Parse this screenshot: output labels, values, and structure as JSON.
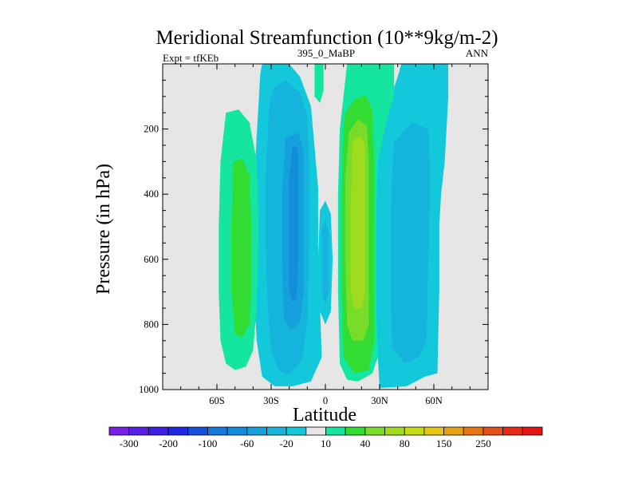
{
  "chart_data": {
    "type": "heatmap",
    "title": "Meridional Streamfunction (10**9kg/m-2)",
    "left_subtitle": "Expt = tfKEb",
    "center_subtitle": "395_0_MaBP",
    "right_subtitle": "ANN",
    "xlabel": "Latitude",
    "ylabel": "Pressure (in hPa)",
    "xlim": [
      -90,
      90
    ],
    "ylim": [
      1000,
      0
    ],
    "x_ticks": [
      {
        "value": -60,
        "label": "60S"
      },
      {
        "value": -30,
        "label": "30S"
      },
      {
        "value": 0,
        "label": "0"
      },
      {
        "value": 30,
        "label": "30N"
      },
      {
        "value": 60,
        "label": "60N"
      }
    ],
    "y_ticks": [
      {
        "value": 200,
        "label": "200"
      },
      {
        "value": 400,
        "label": "400"
      },
      {
        "value": 600,
        "label": "600"
      },
      {
        "value": 800,
        "label": "800"
      },
      {
        "value": 1000,
        "label": "1000"
      }
    ],
    "colorbar": {
      "colors": [
        "#7a1ee6",
        "#5a1ee6",
        "#3c1ee6",
        "#1e28e6",
        "#1450dc",
        "#1478dc",
        "#148cdc",
        "#14a0dc",
        "#14b4dc",
        "#14c8dc",
        "#e6e6e6",
        "#14e6a0",
        "#32dc32",
        "#78dc28",
        "#a0dc1e",
        "#c8dc14",
        "#e6c814",
        "#e6a014",
        "#e67814",
        "#e65014",
        "#e62814",
        "#e61414"
      ],
      "labels": [
        {
          "boundary": 1,
          "text": "-300"
        },
        {
          "boundary": 3,
          "text": "-200"
        },
        {
          "boundary": 5,
          "text": "-100"
        },
        {
          "boundary": 7,
          "text": "-60"
        },
        {
          "boundary": 9,
          "text": "-20"
        },
        {
          "boundary": 11,
          "text": "10"
        },
        {
          "boundary": 13,
          "text": "40"
        },
        {
          "boundary": 15,
          "text": "80"
        },
        {
          "boundary": 17,
          "text": "150"
        },
        {
          "boundary": 19,
          "text": "250"
        }
      ]
    },
    "background_color": "#e6e6e6",
    "regions": [
      {
        "level": "-20",
        "color": "#14c8dc",
        "polygon": [
          [
            -20,
            0
          ],
          [
            -35,
            0
          ],
          [
            -36,
            30
          ],
          [
            -38,
            220
          ],
          [
            -40,
            420
          ],
          [
            -40,
            640
          ],
          [
            -38,
            850
          ],
          [
            -35,
            960
          ],
          [
            -28,
            990
          ],
          [
            -18,
            990
          ],
          [
            -8,
            975
          ],
          [
            -2,
            900
          ],
          [
            -3,
            740
          ],
          [
            -4,
            560
          ],
          [
            -4,
            380
          ],
          [
            -8,
            130
          ],
          [
            -14,
            40
          ],
          [
            -20,
            0
          ]
        ]
      },
      {
        "level": "-20",
        "color": "#14c8dc",
        "polygon": [
          [
            42,
            0
          ],
          [
            68,
            0
          ],
          [
            68,
            100
          ],
          [
            67,
            200
          ],
          [
            66,
            300
          ],
          [
            64,
            400
          ],
          [
            63,
            500
          ],
          [
            63,
            700
          ],
          [
            62,
            950
          ],
          [
            55,
            960
          ],
          [
            45,
            990
          ],
          [
            30,
            995
          ],
          [
            27,
            700
          ],
          [
            28,
            300
          ],
          [
            35,
            120
          ],
          [
            40,
            40
          ],
          [
            42,
            0
          ]
        ]
      },
      {
        "level": "-20",
        "color": "#14c8dc",
        "polygon": [
          [
            -3,
            450
          ],
          [
            0,
            420
          ],
          [
            3,
            460
          ],
          [
            4,
            600
          ],
          [
            3,
            760
          ],
          [
            0,
            800
          ],
          [
            -3,
            760
          ],
          [
            -4,
            600
          ],
          [
            -3,
            450
          ]
        ]
      },
      {
        "level": "-60",
        "color": "#14b4dc",
        "polygon": [
          [
            -31,
            120
          ],
          [
            -28,
            70
          ],
          [
            -22,
            50
          ],
          [
            -14,
            90
          ],
          [
            -10,
            160
          ],
          [
            -9,
            300
          ],
          [
            -9,
            560
          ],
          [
            -10,
            800
          ],
          [
            -13,
            910
          ],
          [
            -20,
            955
          ],
          [
            -26,
            940
          ],
          [
            -30,
            880
          ],
          [
            -32,
            740
          ],
          [
            -33,
            550
          ],
          [
            -33,
            350
          ],
          [
            -31,
            120
          ]
        ]
      },
      {
        "level": "-60",
        "color": "#14b4dc",
        "polygon": [
          [
            38,
            240
          ],
          [
            48,
            180
          ],
          [
            57,
            200
          ],
          [
            58,
            360
          ],
          [
            57,
            600
          ],
          [
            56,
            850
          ],
          [
            52,
            900
          ],
          [
            44,
            920
          ],
          [
            37,
            870
          ],
          [
            36,
            700
          ],
          [
            36,
            500
          ],
          [
            37,
            330
          ],
          [
            38,
            240
          ]
        ]
      },
      {
        "level": "-60",
        "color": "#14b4dc",
        "polygon": [
          [
            -2,
            500
          ],
          [
            0,
            480
          ],
          [
            2,
            520
          ],
          [
            2,
            700
          ],
          [
            0,
            740
          ],
          [
            -2,
            700
          ],
          [
            -2,
            500
          ]
        ]
      },
      {
        "level": "-100",
        "color": "#14a0dc",
        "polygon": [
          [
            -22,
            230
          ],
          [
            -15,
            210
          ],
          [
            -12,
            270
          ],
          [
            -12,
            500
          ],
          [
            -12,
            700
          ],
          [
            -14,
            790
          ],
          [
            -19,
            820
          ],
          [
            -23,
            780
          ],
          [
            -24,
            600
          ],
          [
            -24,
            400
          ],
          [
            -22,
            230
          ]
        ]
      },
      {
        "level": "-200",
        "color": "#148cdc",
        "polygon": [
          [
            -18,
            250
          ],
          [
            -15,
            260
          ],
          [
            -15,
            400
          ],
          [
            -15,
            600
          ],
          [
            -16,
            720
          ],
          [
            -18,
            730
          ],
          [
            -20,
            700
          ],
          [
            -20,
            500
          ],
          [
            -20,
            350
          ],
          [
            -18,
            250
          ]
        ]
      },
      {
        "level": "10",
        "color": "#14e6a0",
        "polygon": [
          [
            -55,
            150
          ],
          [
            -48,
            140
          ],
          [
            -42,
            180
          ],
          [
            -38,
            300
          ],
          [
            -37,
            500
          ],
          [
            -38,
            750
          ],
          [
            -40,
            880
          ],
          [
            -44,
            930
          ],
          [
            -50,
            940
          ],
          [
            -55,
            920
          ],
          [
            -58,
            850
          ],
          [
            -59,
            700
          ],
          [
            -59,
            500
          ],
          [
            -58,
            300
          ],
          [
            -55,
            150
          ]
        ]
      },
      {
        "level": "10",
        "color": "#14e6a0",
        "polygon": [
          [
            12,
            0
          ],
          [
            38,
            0
          ],
          [
            38,
            100
          ],
          [
            35,
            150
          ],
          [
            32,
            220
          ],
          [
            29,
            300
          ],
          [
            28,
            500
          ],
          [
            28,
            700
          ],
          [
            29,
            900
          ],
          [
            26,
            950
          ],
          [
            18,
            975
          ],
          [
            12,
            970
          ],
          [
            8,
            920
          ],
          [
            7,
            700
          ],
          [
            7,
            400
          ],
          [
            8,
            200
          ],
          [
            10,
            100
          ],
          [
            12,
            0
          ]
        ]
      },
      {
        "level": "10",
        "color": "#14e6a0",
        "polygon": [
          [
            -6,
            0
          ],
          [
            -1,
            0
          ],
          [
            -1,
            80
          ],
          [
            -3,
            120
          ],
          [
            -6,
            100
          ],
          [
            -6,
            0
          ]
        ]
      },
      {
        "level": "40",
        "color": "#32dc32",
        "polygon": [
          [
            -51,
            300
          ],
          [
            -46,
            290
          ],
          [
            -42,
            340
          ],
          [
            -41,
            500
          ],
          [
            -41,
            700
          ],
          [
            -42,
            800
          ],
          [
            -46,
            840
          ],
          [
            -50,
            830
          ],
          [
            -52,
            700
          ],
          [
            -52,
            500
          ],
          [
            -51,
            300
          ]
        ]
      },
      {
        "level": "40",
        "color": "#32dc32",
        "polygon": [
          [
            11,
            150
          ],
          [
            16,
            110
          ],
          [
            22,
            95
          ],
          [
            26,
            140
          ],
          [
            27,
            300
          ],
          [
            27,
            600
          ],
          [
            27,
            850
          ],
          [
            24,
            940
          ],
          [
            16,
            950
          ],
          [
            10,
            900
          ],
          [
            9,
            700
          ],
          [
            9,
            400
          ],
          [
            10,
            200
          ],
          [
            11,
            150
          ]
        ]
      },
      {
        "level": "80",
        "color": "#78dc28",
        "polygon": [
          [
            13,
            210
          ],
          [
            18,
            170
          ],
          [
            23,
            190
          ],
          [
            24,
            300
          ],
          [
            24,
            600
          ],
          [
            24,
            800
          ],
          [
            21,
            850
          ],
          [
            15,
            850
          ],
          [
            12,
            800
          ],
          [
            11,
            600
          ],
          [
            11,
            350
          ],
          [
            13,
            210
          ]
        ]
      },
      {
        "level": "150",
        "color": "#a0dc1e",
        "polygon": [
          [
            15,
            240
          ],
          [
            19,
            220
          ],
          [
            22,
            250
          ],
          [
            22,
            500
          ],
          [
            22,
            700
          ],
          [
            20,
            750
          ],
          [
            16,
            750
          ],
          [
            14,
            700
          ],
          [
            14,
            450
          ],
          [
            15,
            240
          ]
        ]
      }
    ]
  }
}
